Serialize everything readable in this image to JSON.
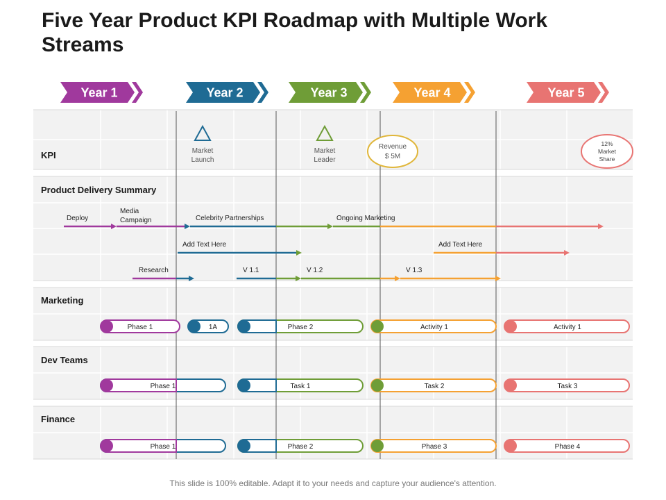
{
  "title": "Five Year Product KPI Roadmap with Multiple Work Streams",
  "footer": "This slide is 100% editable. Adapt it to your needs and capture your audience's attention.",
  "colors": {
    "purple": "#a0399d",
    "blue": "#1f6b94",
    "green": "#6f9d37",
    "orange": "#f5a132",
    "red": "#e87472"
  },
  "years": [
    {
      "label": "Year 1",
      "color": "#a0399d"
    },
    {
      "label": "Year 2",
      "color": "#1f6b94"
    },
    {
      "label": "Year 3",
      "color": "#6f9d37"
    },
    {
      "label": "Year 4",
      "color": "#f5a132"
    },
    {
      "label": "Year 5",
      "color": "#e87472"
    }
  ],
  "sections": {
    "kpi": "KPI",
    "product_delivery": "Product Delivery Summary",
    "marketing": "Marketing",
    "dev_teams": "Dev Teams",
    "finance": "Finance"
  },
  "kpi": {
    "market_launch": [
      "Market",
      "Launch"
    ],
    "market_leader": [
      "Market",
      "Leader"
    ],
    "revenue": [
      "Revenue",
      "$ 5M"
    ],
    "market_share": [
      "12%",
      "Market",
      "Share"
    ]
  },
  "delivery": {
    "deploy": "Deploy",
    "media_campaign": [
      "Media",
      "Campaign"
    ],
    "celebrity": "Celebrity Partnerships",
    "ongoing": "Ongoing Marketing",
    "add_text_1": "Add Text Here",
    "add_text_2": "Add Text Here",
    "research": "Research",
    "v11": "V 1.1",
    "v12": "V 1.2",
    "v13": "V 1.3"
  },
  "marketing_pills": [
    "Phase 1",
    "1A",
    "Phase 2",
    "Activity 1",
    "Activity 1"
  ],
  "dev_pills": [
    "Phase 1",
    "Task 1",
    "Task 2",
    "Task 3"
  ],
  "finance_pills": [
    "Phase 1",
    "Phase 2",
    "Phase 3",
    "Phase 4"
  ]
}
